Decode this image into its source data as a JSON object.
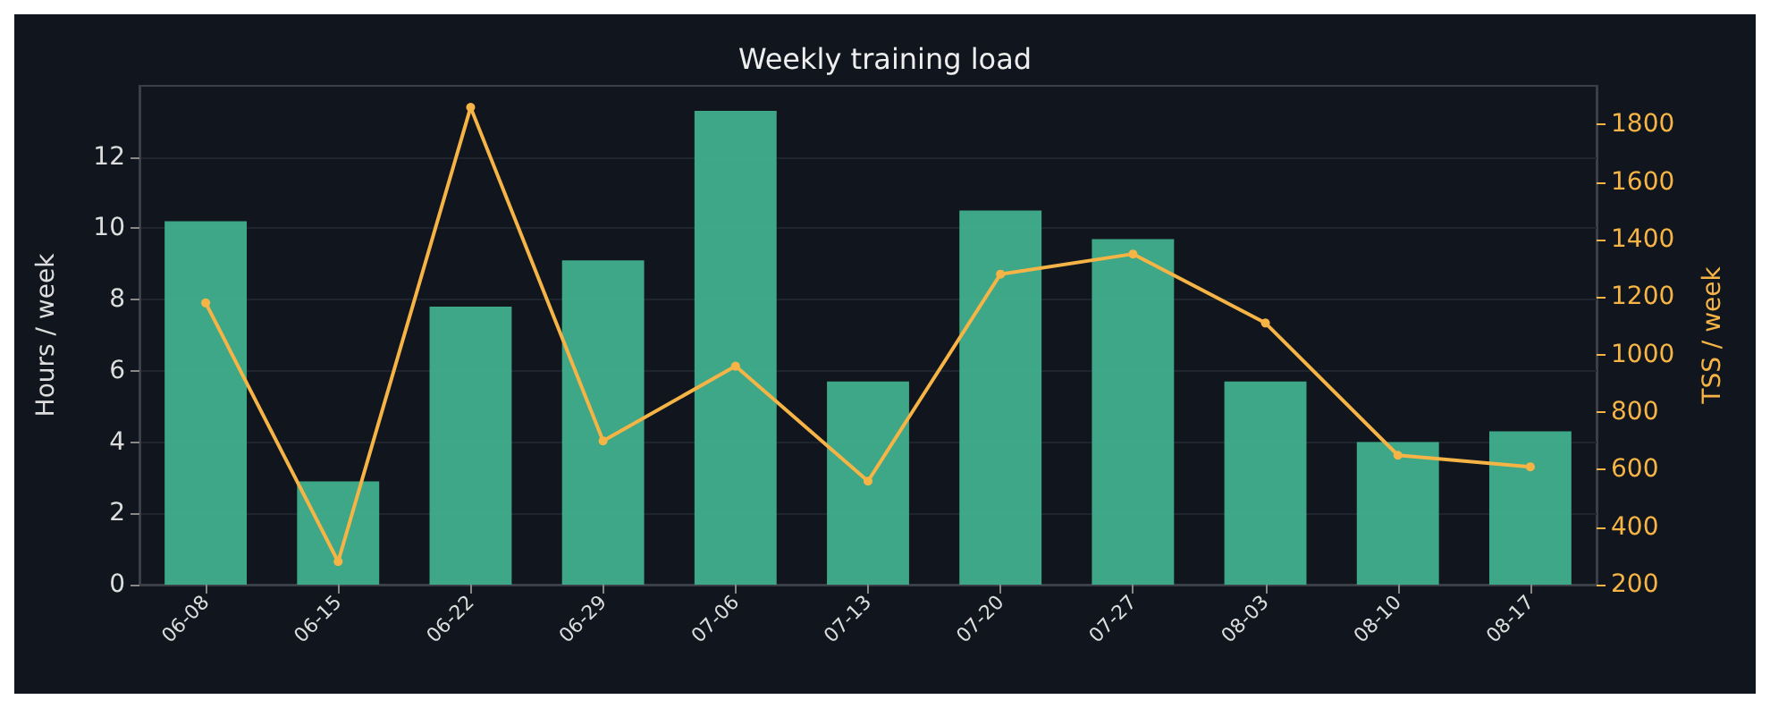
{
  "chart_data": {
    "type": "bar",
    "title": "Weekly training load",
    "ylabel": "Hours / week",
    "y2label": "TSS / week",
    "categories": [
      "06-08",
      "06-15",
      "06-22",
      "06-29",
      "07-06",
      "07-13",
      "07-20",
      "07-27",
      "08-03",
      "08-10",
      "08-17"
    ],
    "series": [
      {
        "color": "#43b794",
        "values": [
          10.2,
          2.9,
          7.8,
          9.1,
          13.3,
          5.7,
          10.5,
          9.7,
          5.7,
          4.0,
          4.3
        ]
      },
      {
        "type": "line",
        "axis": "y2",
        "color": "#f5b445",
        "marker": "circle",
        "values": [
          1180,
          280,
          1860,
          700,
          960,
          560,
          1280,
          1350,
          1110,
          650,
          610
        ]
      }
    ],
    "ylim": [
      0,
      14
    ],
    "yticks": [
      0,
      2,
      4,
      6,
      8,
      10,
      12
    ],
    "y2lim": [
      200,
      1935
    ],
    "y2ticks": [
      200,
      400,
      600,
      800,
      1000,
      1200,
      1400,
      1600,
      1800
    ],
    "grid": "y"
  }
}
